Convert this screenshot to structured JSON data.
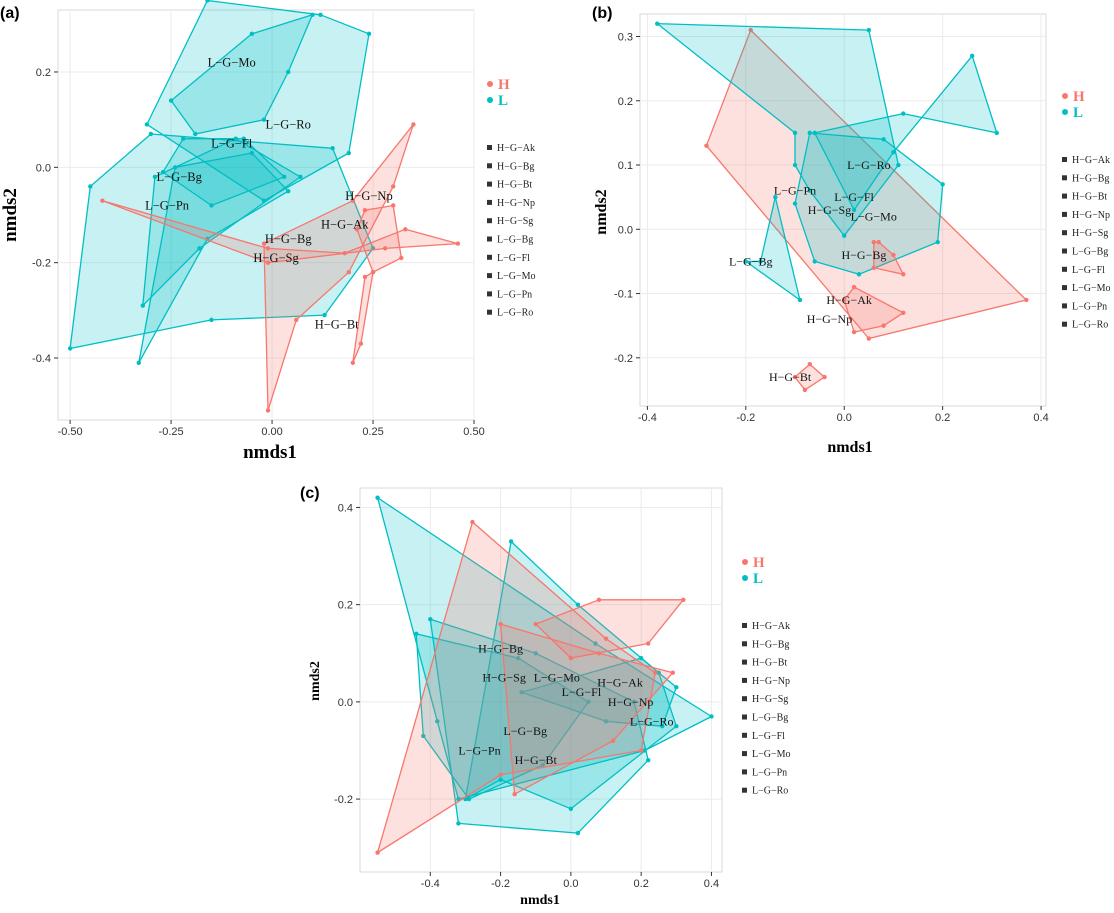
{
  "colors": {
    "H": "#F8766D",
    "L": "#00BFC4",
    "grid": "#ebebeb",
    "axis": "#333333"
  },
  "legend_groups": [
    {
      "key": "H",
      "label": "H"
    },
    {
      "key": "L",
      "label": "L"
    }
  ],
  "legend_shapes": [
    "H−G−Ak",
    "H−G−Bg",
    "H−G−Bt",
    "H−G−Np",
    "H−G−Sg",
    "L−G−Bg",
    "L−G−Fl",
    "L−G−Mo",
    "L−G−Pn",
    "L−G−Ro"
  ],
  "chart_data": [
    {
      "panel": "(a)",
      "type": "scatter",
      "xlabel": "nmds1",
      "ylabel": "nmds2",
      "xlim": [
        -0.53,
        0.5
      ],
      "ylim": [
        -0.53,
        0.33
      ],
      "xticks": [
        -0.5,
        -0.25,
        0.0,
        0.25,
        0.5
      ],
      "xtick_labels": [
        "-0.50",
        "-0.25",
        "0.00",
        "0.25",
        "0.50"
      ],
      "yticks": [
        -0.4,
        -0.2,
        0.0,
        0.2
      ],
      "ytick_labels": [
        "-0.4",
        "-0.2",
        "0.0",
        "0.2"
      ],
      "hulls": [
        {
          "group": "L",
          "pts": [
            [
              -0.16,
              0.35
            ],
            [
              0.12,
              0.32
            ],
            [
              0.24,
              0.28
            ],
            [
              0.19,
              0.03
            ],
            [
              -0.02,
              -0.07
            ],
            [
              -0.31,
              0.09
            ]
          ]
        },
        {
          "group": "L",
          "pts": [
            [
              -0.3,
              0.07
            ],
            [
              0.15,
              0.04
            ],
            [
              0.25,
              -0.17
            ],
            [
              0.13,
              -0.31
            ],
            [
              -0.15,
              -0.32
            ],
            [
              -0.5,
              -0.38
            ],
            [
              -0.45,
              -0.04
            ]
          ]
        },
        {
          "group": "L",
          "pts": [
            [
              -0.22,
              0.06
            ],
            [
              -0.07,
              0.06
            ],
            [
              0.03,
              -0.02
            ],
            [
              -0.15,
              -0.08
            ],
            [
              -0.27,
              -0.01
            ]
          ]
        },
        {
          "group": "L",
          "pts": [
            [
              -0.25,
              0.14
            ],
            [
              -0.05,
              0.28
            ],
            [
              0.1,
              0.32
            ],
            [
              0.04,
              0.2
            ],
            [
              -0.02,
              0.1
            ],
            [
              -0.19,
              0.07
            ]
          ]
        },
        {
          "group": "L",
          "pts": [
            [
              -0.29,
              -0.02
            ],
            [
              -0.09,
              0.06
            ],
            [
              0.07,
              -0.02
            ],
            [
              -0.18,
              -0.17
            ],
            [
              -0.32,
              -0.29
            ]
          ]
        },
        {
          "group": "L",
          "pts": [
            [
              -0.24,
              0.0
            ],
            [
              -0.05,
              0.03
            ],
            [
              0.04,
              -0.05
            ],
            [
              -0.16,
              -0.15
            ],
            [
              -0.33,
              -0.41
            ]
          ]
        },
        {
          "group": "H",
          "pts": [
            [
              -0.42,
              -0.07
            ],
            [
              -0.01,
              -0.17
            ],
            [
              0.18,
              -0.18
            ],
            [
              0.33,
              -0.13
            ],
            [
              0.46,
              -0.16
            ],
            [
              0.28,
              -0.17
            ],
            [
              -0.01,
              -0.2
            ]
          ]
        },
        {
          "group": "H",
          "pts": [
            [
              0.2,
              -0.07
            ],
            [
              0.35,
              0.09
            ],
            [
              0.3,
              -0.04
            ],
            [
              0.19,
              -0.22
            ],
            [
              0.06,
              -0.32
            ],
            [
              -0.01,
              -0.51
            ],
            [
              -0.02,
              -0.16
            ]
          ]
        },
        {
          "group": "H",
          "pts": [
            [
              0.23,
              -0.09
            ],
            [
              0.3,
              -0.08
            ],
            [
              0.32,
              -0.19
            ],
            [
              0.25,
              -0.22
            ],
            [
              0.21,
              -0.13
            ]
          ]
        },
        {
          "group": "H",
          "pts": [
            [
              0.23,
              -0.23
            ],
            [
              0.25,
              -0.22
            ],
            [
              0.22,
              -0.37
            ],
            [
              0.2,
              -0.41
            ]
          ]
        }
      ],
      "labels": [
        {
          "text": "L−G−Mo",
          "x": -0.1,
          "y": 0.22
        },
        {
          "text": "L−G−Ro",
          "x": 0.04,
          "y": 0.09
        },
        {
          "text": "L−G−Fl",
          "x": -0.1,
          "y": 0.05
        },
        {
          "text": "L−G−Bg",
          "x": -0.23,
          "y": -0.02
        },
        {
          "text": "L−G−Pn",
          "x": -0.26,
          "y": -0.08
        },
        {
          "text": "H−G−Np",
          "x": 0.24,
          "y": -0.06
        },
        {
          "text": "H−G−Ak",
          "x": 0.18,
          "y": -0.12
        },
        {
          "text": "H−G−Bg",
          "x": 0.04,
          "y": -0.15
        },
        {
          "text": "H−G−Sg",
          "x": 0.01,
          "y": -0.19
        },
        {
          "text": "H−G−Bt",
          "x": 0.16,
          "y": -0.33
        }
      ]
    },
    {
      "panel": "(b)",
      "type": "scatter",
      "xlabel": "nmds1",
      "ylabel": "nmds2",
      "xlim": [
        -0.415,
        0.41
      ],
      "ylim": [
        -0.275,
        0.335
      ],
      "xticks": [
        -0.4,
        -0.2,
        0.0,
        0.2,
        0.4
      ],
      "xtick_labels": [
        "-0.4",
        "-0.2",
        "0.0",
        "0.2",
        "0.4"
      ],
      "yticks": [
        -0.2,
        -0.1,
        0.0,
        0.1,
        0.2,
        0.3
      ],
      "ytick_labels": [
        "-0.2",
        "-0.1",
        "0.0",
        "0.1",
        "0.2",
        "0.3"
      ],
      "hulls": [
        {
          "group": "H",
          "pts": [
            [
              -0.19,
              0.31
            ],
            [
              0.37,
              -0.11
            ],
            [
              0.05,
              -0.17
            ],
            [
              -0.28,
              0.13
            ]
          ]
        },
        {
          "group": "L",
          "pts": [
            [
              -0.38,
              0.32
            ],
            [
              0.05,
              0.31
            ],
            [
              0.11,
              0.1
            ],
            [
              0.0,
              -0.01
            ],
            [
              -0.07,
              0.06
            ],
            [
              -0.1,
              0.1
            ],
            [
              -0.1,
              0.15
            ]
          ]
        },
        {
          "group": "L",
          "pts": [
            [
              -0.06,
              0.15
            ],
            [
              0.12,
              0.18
            ],
            [
              0.31,
              0.15
            ],
            [
              0.26,
              0.27
            ],
            [
              0.1,
              0.12
            ],
            [
              0.02,
              0.03
            ]
          ]
        },
        {
          "group": "L",
          "pts": [
            [
              -0.07,
              0.15
            ],
            [
              0.08,
              0.14
            ],
            [
              0.2,
              0.07
            ],
            [
              0.19,
              -0.02
            ],
            [
              0.03,
              -0.07
            ],
            [
              -0.06,
              -0.05
            ],
            [
              -0.1,
              0.04
            ]
          ]
        },
        {
          "group": "L",
          "pts": [
            [
              -0.14,
              0.05
            ],
            [
              -0.09,
              -0.11
            ],
            [
              -0.2,
              -0.05
            ],
            [
              -0.17,
              -0.05
            ]
          ]
        },
        {
          "group": "H",
          "pts": [
            [
              0.07,
              -0.02
            ],
            [
              0.1,
              -0.04
            ],
            [
              0.12,
              -0.07
            ],
            [
              0.06,
              -0.06
            ],
            [
              0.06,
              -0.02
            ]
          ]
        },
        {
          "group": "H",
          "pts": [
            [
              0.02,
              -0.09
            ],
            [
              0.12,
              -0.13
            ],
            [
              0.08,
              -0.15
            ],
            [
              0.02,
              -0.16
            ],
            [
              0.0,
              -0.11
            ]
          ]
        },
        {
          "group": "H",
          "pts": [
            [
              -0.07,
              -0.21
            ],
            [
              -0.04,
              -0.23
            ],
            [
              -0.08,
              -0.25
            ],
            [
              -0.1,
              -0.23
            ]
          ]
        }
      ],
      "labels": [
        {
          "text": "L−G−Ro",
          "x": 0.05,
          "y": 0.1
        },
        {
          "text": "L−G−Pn",
          "x": -0.1,
          "y": 0.06
        },
        {
          "text": "L−G−Fl",
          "x": 0.02,
          "y": 0.05
        },
        {
          "text": "H−G−Sg",
          "x": -0.03,
          "y": 0.03
        },
        {
          "text": "L−G−Mo",
          "x": 0.06,
          "y": 0.02
        },
        {
          "text": "H−G−Bg",
          "x": 0.04,
          "y": -0.04
        },
        {
          "text": "L−G−Bg",
          "x": -0.19,
          "y": -0.05
        },
        {
          "text": "H−G−Ak",
          "x": 0.01,
          "y": -0.11
        },
        {
          "text": "H−G−Np",
          "x": -0.03,
          "y": -0.14
        },
        {
          "text": "H−G−Bt",
          "x": -0.11,
          "y": -0.23
        }
      ]
    },
    {
      "panel": "(c)",
      "type": "scatter",
      "xlabel": "nmds1",
      "ylabel": "nmds2",
      "xlim": [
        -0.6,
        0.43
      ],
      "ylim": [
        -0.35,
        0.44
      ],
      "xticks": [
        -0.4,
        -0.2,
        0.0,
        0.2,
        0.4
      ],
      "xtick_labels": [
        "-0.4",
        "-0.2",
        "0.0",
        "0.2",
        "0.4"
      ],
      "yticks": [
        -0.2,
        0.0,
        0.2,
        0.4
      ],
      "ytick_labels": [
        "-0.2",
        "0.0",
        "0.2",
        "0.4"
      ],
      "hulls": [
        {
          "group": "L",
          "pts": [
            [
              -0.55,
              0.42
            ],
            [
              0.07,
              0.12
            ],
            [
              0.4,
              -0.03
            ],
            [
              0.21,
              -0.1
            ],
            [
              -0.32,
              -0.2
            ],
            [
              -0.38,
              -0.04
            ]
          ]
        },
        {
          "group": "L",
          "pts": [
            [
              -0.4,
              0.17
            ],
            [
              -0.1,
              0.1
            ],
            [
              0.18,
              0.0
            ],
            [
              0.22,
              -0.12
            ],
            [
              0.02,
              -0.27
            ],
            [
              -0.32,
              -0.25
            ]
          ]
        },
        {
          "group": "L",
          "pts": [
            [
              -0.17,
              0.33
            ],
            [
              0.02,
              0.2
            ],
            [
              0.25,
              0.06
            ],
            [
              0.3,
              -0.05
            ],
            [
              0.0,
              -0.22
            ],
            [
              -0.2,
              -0.16
            ],
            [
              -0.3,
              -0.2
            ]
          ]
        },
        {
          "group": "L",
          "pts": [
            [
              -0.44,
              0.14
            ],
            [
              -0.15,
              0.09
            ],
            [
              0.05,
              0.0
            ],
            [
              -0.08,
              -0.13
            ],
            [
              -0.29,
              -0.2
            ],
            [
              -0.42,
              -0.07
            ]
          ]
        },
        {
          "group": "L",
          "pts": [
            [
              -0.14,
              0.02
            ],
            [
              0.2,
              0.09
            ],
            [
              0.3,
              0.03
            ],
            [
              0.26,
              -0.05
            ],
            [
              0.1,
              -0.04
            ]
          ]
        },
        {
          "group": "H",
          "pts": [
            [
              -0.28,
              0.37
            ],
            [
              0.1,
              0.13
            ],
            [
              0.24,
              0.06
            ],
            [
              0.2,
              -0.1
            ],
            [
              -0.2,
              -0.15
            ],
            [
              -0.55,
              -0.31
            ]
          ]
        },
        {
          "group": "H",
          "pts": [
            [
              0.08,
              0.21
            ],
            [
              0.32,
              0.21
            ],
            [
              0.22,
              0.12
            ],
            [
              0.0,
              0.09
            ],
            [
              -0.1,
              0.16
            ]
          ]
        },
        {
          "group": "H",
          "pts": [
            [
              -0.2,
              0.16
            ],
            [
              0.08,
              0.1
            ],
            [
              0.29,
              0.06
            ],
            [
              0.12,
              -0.08
            ],
            [
              -0.16,
              -0.19
            ]
          ]
        }
      ],
      "labels": [
        {
          "text": "H−G−Bg",
          "x": -0.2,
          "y": 0.11
        },
        {
          "text": "H−G−Sg",
          "x": -0.19,
          "y": 0.05
        },
        {
          "text": "L−G−Mo",
          "x": -0.04,
          "y": 0.05
        },
        {
          "text": "H−G−Ak",
          "x": 0.14,
          "y": 0.04
        },
        {
          "text": "L−G−Fl",
          "x": 0.03,
          "y": 0.02
        },
        {
          "text": "H−G−Np",
          "x": 0.17,
          "y": 0.0
        },
        {
          "text": "L−G−Ro",
          "x": 0.23,
          "y": -0.04
        },
        {
          "text": "L−G−Bg",
          "x": -0.13,
          "y": -0.06
        },
        {
          "text": "L−G−Pn",
          "x": -0.26,
          "y": -0.1
        },
        {
          "text": "H−G−Bt",
          "x": -0.1,
          "y": -0.12
        }
      ]
    }
  ]
}
